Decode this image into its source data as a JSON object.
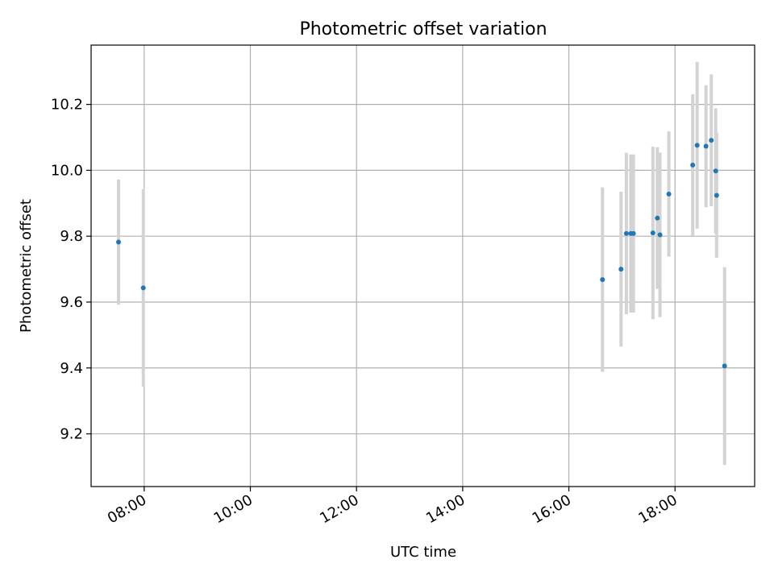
{
  "chart_data": {
    "type": "scatter",
    "title": "Photometric offset variation",
    "xlabel": "UTC time",
    "ylabel": "Photometric offset",
    "x_is_time": true,
    "xlim": [
      "07:00",
      "19:30"
    ],
    "ylim": [
      9.04,
      10.38
    ],
    "x_ticks": [
      "08:00",
      "10:00",
      "12:00",
      "14:00",
      "16:00",
      "18:00"
    ],
    "y_ticks": [
      "9.2",
      "9.4",
      "9.6",
      "9.8",
      "10.0",
      "10.2"
    ],
    "grid": true,
    "colors": {
      "point": "#1f77b4",
      "errorbar": "#d3d3d3",
      "grid": "#b0b0b0"
    },
    "points": [
      {
        "x": "07:31",
        "y": 9.782,
        "err": 0.19
      },
      {
        "x": "07:59",
        "y": 9.643,
        "err": 0.3
      },
      {
        "x": "16:38",
        "y": 9.668,
        "err": 0.28
      },
      {
        "x": "16:59",
        "y": 9.7,
        "err": 0.235
      },
      {
        "x": "17:05",
        "y": 9.808,
        "err": 0.245
      },
      {
        "x": "17:10",
        "y": 9.808,
        "err": 0.24
      },
      {
        "x": "17:13",
        "y": 9.808,
        "err": 0.24
      },
      {
        "x": "17:35",
        "y": 9.81,
        "err": 0.262
      },
      {
        "x": "17:40",
        "y": 9.855,
        "err": 0.215
      },
      {
        "x": "17:43",
        "y": 9.804,
        "err": 0.25
      },
      {
        "x": "17:53",
        "y": 9.928,
        "err": 0.19
      },
      {
        "x": "18:20",
        "y": 10.016,
        "err": 0.215
      },
      {
        "x": "18:25",
        "y": 10.076,
        "err": 0.253
      },
      {
        "x": "18:35",
        "y": 10.073,
        "err": 0.185
      },
      {
        "x": "18:41",
        "y": 10.091,
        "err": 0.2
      },
      {
        "x": "18:46",
        "y": 9.998,
        "err": 0.19
      },
      {
        "x": "18:47",
        "y": 9.924,
        "err": 0.19
      },
      {
        "x": "18:56",
        "y": 9.406,
        "err": 0.3
      }
    ]
  }
}
